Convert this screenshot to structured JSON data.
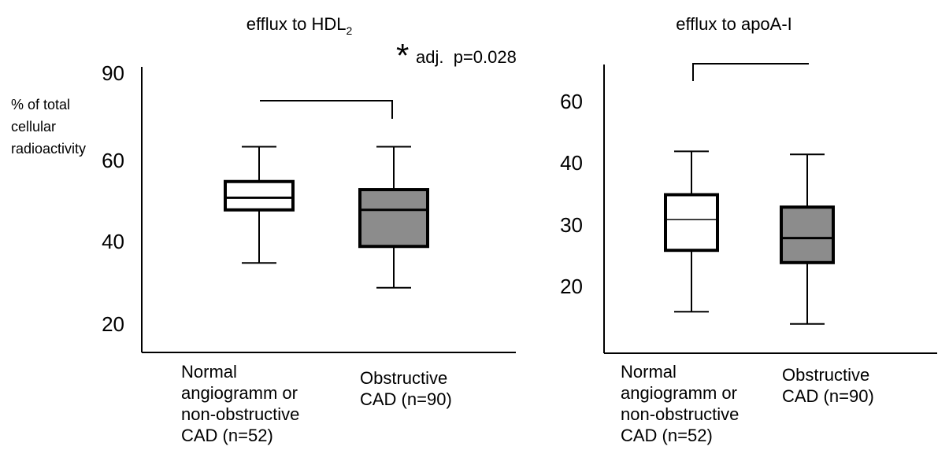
{
  "chart_data": [
    {
      "type": "box",
      "title": "efflux to HDL",
      "title_subscript": "2",
      "ylabel": [
        "% of total",
        "cellular",
        "radioactivity"
      ],
      "yticks": [
        "90",
        "60",
        "40",
        "20"
      ],
      "categories": [
        [
          "Normal",
          "angiogramm or",
          "non-obstructive",
          "CAD (n=52)"
        ],
        [
          "Obstructive",
          "CAD (n=90)"
        ]
      ],
      "boxes": [
        {
          "whisker_low": 35,
          "q1": 48,
          "median": 51,
          "q3": 55,
          "whisker_high": 65,
          "fill": "#ffffff"
        },
        {
          "whisker_low": 29,
          "q1": 39,
          "median": 48,
          "q3": 53,
          "whisker_high": 65,
          "fill": "#8c8c8c"
        }
      ],
      "annotation": {
        "star": "*",
        "text": "adj.  p=0.028"
      }
    },
    {
      "type": "box",
      "title": "efflux to apoA-I",
      "yticks": [
        "60",
        "40",
        "30",
        "20"
      ],
      "categories": [
        [
          "Normal",
          "angiogramm or",
          "non-obstructive",
          "CAD (n=52)"
        ],
        [
          "Obstructive",
          "CAD (n=90)"
        ]
      ],
      "boxes": [
        {
          "whisker_low": 16,
          "q1": 26,
          "median": 31,
          "q3": 35,
          "whisker_high": 44,
          "fill": "#ffffff"
        },
        {
          "whisker_low": 14,
          "q1": 24,
          "median": 28,
          "q3": 33,
          "whisker_high": 43,
          "fill": "#8c8c8c"
        }
      ]
    }
  ]
}
